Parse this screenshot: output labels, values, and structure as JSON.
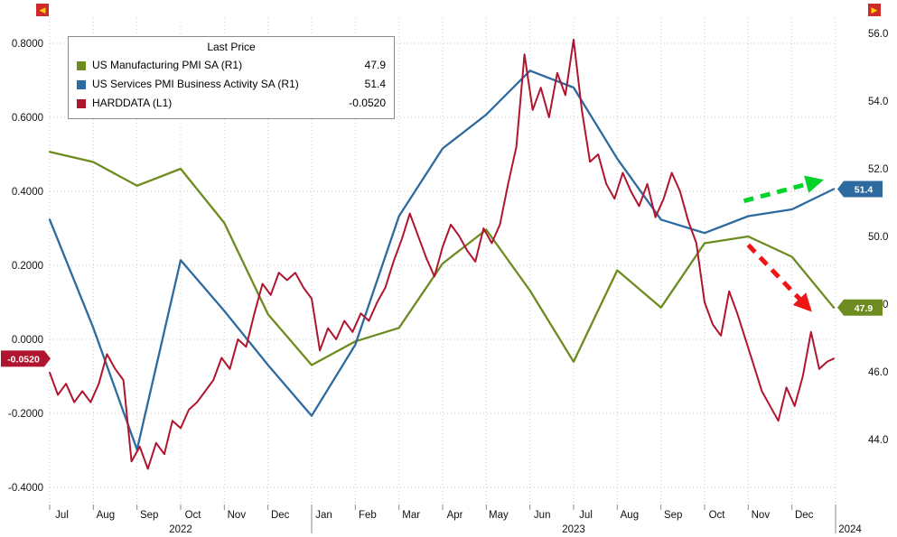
{
  "corners": {
    "left": "◀",
    "right": "▶"
  },
  "legend": {
    "title": "Last Price",
    "items": [
      {
        "label": "US Manufacturing PMI SA  (R1)",
        "value": "47.9",
        "color": "#6d8b1f"
      },
      {
        "label": "US Services PMI Business Activity SA  (R1)",
        "value": "51.4",
        "color": "#2d6a9f"
      },
      {
        "label": "HARDDATA  (L1)",
        "value": "-0.0520",
        "color": "#b01530"
      }
    ]
  },
  "chart_data": {
    "type": "line",
    "title": "",
    "grid": "dotted",
    "legend_position": "top-left",
    "x_axis": {
      "start": "Jul 2022",
      "end": "Dec 2023",
      "month_labels": [
        "Jul",
        "Aug",
        "Sep",
        "Oct",
        "Nov",
        "Dec",
        "Jan",
        "Feb",
        "Mar",
        "Apr",
        "May",
        "Jun",
        "Jul",
        "Aug",
        "Sep",
        "Oct",
        "Nov",
        "Dec"
      ],
      "year_labels": [
        "2022",
        "2023",
        "2024"
      ]
    },
    "left_axis": {
      "ticks": [
        0.8,
        0.6,
        0.4,
        0.2,
        0.0,
        -0.2,
        -0.4
      ],
      "tick_labels": [
        "0.8000",
        "0.6000",
        "0.4000",
        "0.2000",
        "0.0000",
        "-0.2000",
        "-0.4000"
      ],
      "badge": {
        "label": "-0.0520",
        "value": -0.052,
        "color": "#b01530"
      }
    },
    "right_axis": {
      "ticks": [
        56,
        54,
        52,
        50,
        48,
        46,
        44
      ],
      "tick_labels": [
        "56.0",
        "54.0",
        "52.0",
        "50.0",
        "48.0",
        "46.0",
        "44.0"
      ],
      "badges": [
        {
          "label": "51.4",
          "value": 51.4,
          "color": "#2d6a9f"
        },
        {
          "label": "47.9",
          "value": 47.9,
          "color": "#6d8b1f"
        }
      ]
    },
    "monthly_categories": [
      "Jun 2022",
      "Jul 2022",
      "Aug 2022",
      "Sep 2022",
      "Oct 2022",
      "Nov 2022",
      "Dec 2022",
      "Jan 2023",
      "Feb 2023",
      "Mar 2023",
      "Apr 2023",
      "May 2023",
      "Jun 2023",
      "Jul 2023",
      "Aug 2023",
      "Sep 2023",
      "Oct 2023",
      "Nov 2023",
      "Dec 2023"
    ],
    "series": [
      {
        "name": "US Manufacturing PMI SA",
        "axis": "R1",
        "frequency": "monthly",
        "color": "#6d8b1f",
        "values": [
          52.5,
          52.2,
          51.5,
          52.0,
          50.4,
          47.7,
          46.2,
          46.9,
          47.3,
          49.2,
          50.2,
          48.4,
          46.3,
          49.0,
          47.9,
          49.8,
          50.0,
          49.4,
          47.9
        ]
      },
      {
        "name": "US Services PMI Business Activity SA",
        "axis": "R1",
        "frequency": "monthly",
        "color": "#2d6a9f",
        "values": [
          50.5,
          47.3,
          43.7,
          49.3,
          47.8,
          46.2,
          44.7,
          46.8,
          50.6,
          52.6,
          53.6,
          54.9,
          54.4,
          52.3,
          50.5,
          50.1,
          50.6,
          50.8,
          51.4
        ]
      },
      {
        "name": "HARDDATA",
        "axis": "L1",
        "frequency": "weekly",
        "color": "#b01530",
        "values": [
          -0.09,
          -0.15,
          -0.12,
          -0.17,
          -0.14,
          -0.17,
          -0.12,
          -0.04,
          -0.08,
          -0.11,
          -0.33,
          -0.29,
          -0.35,
          -0.28,
          -0.31,
          -0.22,
          -0.24,
          -0.19,
          -0.17,
          -0.14,
          -0.11,
          -0.05,
          -0.08,
          0.0,
          -0.02,
          0.07,
          0.15,
          0.12,
          0.18,
          0.16,
          0.18,
          0.14,
          0.11,
          -0.03,
          0.03,
          0.0,
          0.05,
          0.02,
          0.07,
          0.05,
          0.1,
          0.14,
          0.21,
          0.27,
          0.34,
          0.28,
          0.22,
          0.17,
          0.25,
          0.31,
          0.28,
          0.24,
          0.21,
          0.3,
          0.26,
          0.31,
          0.42,
          0.52,
          0.77,
          0.62,
          0.68,
          0.6,
          0.72,
          0.66,
          0.81,
          0.62,
          0.48,
          0.5,
          0.42,
          0.38,
          0.45,
          0.4,
          0.36,
          0.42,
          0.33,
          0.38,
          0.45,
          0.4,
          0.32,
          0.26,
          0.1,
          0.04,
          0.01,
          0.13,
          0.07,
          0.0,
          -0.07,
          -0.14,
          -0.18,
          -0.22,
          -0.13,
          -0.18,
          -0.1,
          0.02,
          -0.08,
          -0.06,
          -0.052
        ]
      }
    ],
    "annotations": [
      {
        "name": "services-up-arrow",
        "shape": "dashed-arrow",
        "color": "#00d42a",
        "axis": "R1",
        "from_month": 15.9,
        "from_value": 51.05,
        "to_month": 17.65,
        "to_value": 51.65
      },
      {
        "name": "manufacturing-down-arrow",
        "shape": "dashed-arrow",
        "color": "#f01515",
        "axis": "R1",
        "from_month": 16.0,
        "from_value": 49.75,
        "to_month": 17.4,
        "to_value": 47.85
      }
    ]
  }
}
